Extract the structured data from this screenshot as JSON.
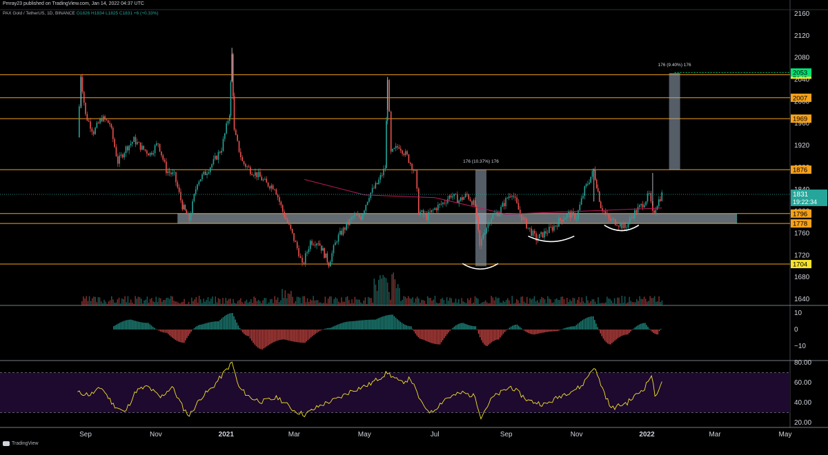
{
  "header": {
    "publish_line": "Pmray23 published on TradingView.com, Jan 14, 2022 04:37 UTC",
    "symbol_line": "PAX Gold / TetherUS, 1D, BINANCE",
    "ohlc": "O1826 H1834 L1825 C1831 +6 (+0.33%)"
  },
  "footer": {
    "brand": "TradingView"
  },
  "colors": {
    "up": "#26a69a",
    "down": "#ef5350",
    "level": "#f7a21b",
    "zone": "#b2c3d3",
    "ma": "#c2185b",
    "rsi": "#f7e32a",
    "rsi_band": "#1d0a2e",
    "price_tag": "#26a69a"
  },
  "chart_data": [
    {
      "type": "candlestick",
      "title": "PAX Gold / TetherUS, 1D, BINANCE",
      "y_axis_ticks": [
        "2160",
        "2120",
        "2080",
        "2040",
        "2000",
        "1960",
        "1920",
        "1880",
        "1840",
        "1800",
        "1760",
        "1720",
        "1680",
        "1640"
      ],
      "ylim": [
        1625,
        2165
      ],
      "x_axis_ticks": [
        "Sep",
        "Nov",
        "2021",
        "Mar",
        "May",
        "Jul",
        "Sep",
        "Nov",
        "2022",
        "Mar",
        "May"
      ],
      "price_series": [
        {
          "date": "2020-08-25",
          "close": 1935
        },
        {
          "date": "2020-08-28",
          "close": 2048
        },
        {
          "date": "2020-09-01",
          "close": 1975
        },
        {
          "date": "2020-09-08",
          "close": 1945
        },
        {
          "date": "2020-09-15",
          "close": 1970
        },
        {
          "date": "2020-09-22",
          "close": 1960
        },
        {
          "date": "2020-09-29",
          "close": 1890
        },
        {
          "date": "2020-10-06",
          "close": 1915
        },
        {
          "date": "2020-10-13",
          "close": 1930
        },
        {
          "date": "2020-10-20",
          "close": 1915
        },
        {
          "date": "2020-10-27",
          "close": 1905
        },
        {
          "date": "2020-11-03",
          "close": 1925
        },
        {
          "date": "2020-11-10",
          "close": 1875
        },
        {
          "date": "2020-11-17",
          "close": 1865
        },
        {
          "date": "2020-11-24",
          "close": 1810
        },
        {
          "date": "2020-11-30",
          "close": 1785
        },
        {
          "date": "2020-12-07",
          "close": 1855
        },
        {
          "date": "2020-12-14",
          "close": 1870
        },
        {
          "date": "2020-12-21",
          "close": 1890
        },
        {
          "date": "2020-12-28",
          "close": 1915
        },
        {
          "date": "2021-01-04",
          "close": 1980
        },
        {
          "date": "2021-01-06",
          "close": 2085
        },
        {
          "date": "2021-01-08",
          "close": 1945
        },
        {
          "date": "2021-01-15",
          "close": 1890
        },
        {
          "date": "2021-01-22",
          "close": 1875
        },
        {
          "date": "2021-01-29",
          "close": 1865
        },
        {
          "date": "2021-02-05",
          "close": 1850
        },
        {
          "date": "2021-02-12",
          "close": 1845
        },
        {
          "date": "2021-02-19",
          "close": 1800
        },
        {
          "date": "2021-02-26",
          "close": 1765
        },
        {
          "date": "2021-03-05",
          "close": 1725
        },
        {
          "date": "2021-03-08",
          "close": 1700
        },
        {
          "date": "2021-03-15",
          "close": 1745
        },
        {
          "date": "2021-03-22",
          "close": 1745
        },
        {
          "date": "2021-03-31",
          "close": 1705
        },
        {
          "date": "2021-04-07",
          "close": 1750
        },
        {
          "date": "2021-04-14",
          "close": 1770
        },
        {
          "date": "2021-04-21",
          "close": 1790
        },
        {
          "date": "2021-04-28",
          "close": 1790
        },
        {
          "date": "2021-05-05",
          "close": 1830
        },
        {
          "date": "2021-05-12",
          "close": 1850
        },
        {
          "date": "2021-05-19",
          "close": 1880
        },
        {
          "date": "2021-05-21",
          "close": 2045
        },
        {
          "date": "2021-05-24",
          "close": 1905
        },
        {
          "date": "2021-05-31",
          "close": 1920
        },
        {
          "date": "2021-06-07",
          "close": 1900
        },
        {
          "date": "2021-06-14",
          "close": 1870
        },
        {
          "date": "2021-06-17",
          "close": 1800
        },
        {
          "date": "2021-06-24",
          "close": 1790
        },
        {
          "date": "2021-07-01",
          "close": 1805
        },
        {
          "date": "2021-07-08",
          "close": 1815
        },
        {
          "date": "2021-07-15",
          "close": 1830
        },
        {
          "date": "2021-07-22",
          "close": 1820
        },
        {
          "date": "2021-07-29",
          "close": 1830
        },
        {
          "date": "2021-08-05",
          "close": 1810
        },
        {
          "date": "2021-08-09",
          "close": 1735
        },
        {
          "date": "2021-08-12",
          "close": 1760
        },
        {
          "date": "2021-08-19",
          "close": 1790
        },
        {
          "date": "2021-08-26",
          "close": 1800
        },
        {
          "date": "2021-09-02",
          "close": 1825
        },
        {
          "date": "2021-09-06",
          "close": 1835
        },
        {
          "date": "2021-09-13",
          "close": 1795
        },
        {
          "date": "2021-09-20",
          "close": 1770
        },
        {
          "date": "2021-09-27",
          "close": 1750
        },
        {
          "date": "2021-10-04",
          "close": 1760
        },
        {
          "date": "2021-10-11",
          "close": 1770
        },
        {
          "date": "2021-10-18",
          "close": 1785
        },
        {
          "date": "2021-10-25",
          "close": 1795
        },
        {
          "date": "2021-11-01",
          "close": 1790
        },
        {
          "date": "2021-11-08",
          "close": 1840
        },
        {
          "date": "2021-11-16",
          "close": 1875
        },
        {
          "date": "2021-11-22",
          "close": 1810
        },
        {
          "date": "2021-11-29",
          "close": 1785
        },
        {
          "date": "2021-12-06",
          "close": 1780
        },
        {
          "date": "2021-12-13",
          "close": 1770
        },
        {
          "date": "2021-12-20",
          "close": 1795
        },
        {
          "date": "2021-12-27",
          "close": 1810
        },
        {
          "date": "2022-01-03",
          "close": 1830
        },
        {
          "date": "2022-01-06",
          "close": 1795
        },
        {
          "date": "2022-01-10",
          "close": 1815
        },
        {
          "date": "2022-01-14",
          "close": 1831
        }
      ],
      "moving_average": [
        {
          "date": "2021-03-10",
          "value": 1858
        },
        {
          "date": "2021-05-01",
          "value": 1830
        },
        {
          "date": "2021-07-01",
          "value": 1825
        },
        {
          "date": "2021-09-01",
          "value": 1795
        },
        {
          "date": "2021-11-01",
          "value": 1800
        },
        {
          "date": "2022-01-14",
          "value": 1806
        }
      ],
      "levels": [
        {
          "label": "2049",
          "value": 2049,
          "tag_color": "#f7e32a"
        },
        {
          "label": "2007",
          "value": 2007,
          "tag_color": "#f7a21b"
        },
        {
          "label": "1969",
          "value": 1969,
          "tag_color": "#f7a21b"
        },
        {
          "label": "1876",
          "value": 1876,
          "tag_color": "#f7a21b"
        },
        {
          "label": "1796",
          "value": 1796,
          "tag_color": "#f7a21b"
        },
        {
          "label": "1778",
          "value": 1778,
          "tag_color": "#f7a21b"
        },
        {
          "label": "1704",
          "value": 1704,
          "tag_color": "#f7e32a"
        }
      ],
      "target_tag": {
        "label": "2053",
        "value": 2053,
        "tag_color": "#00e676"
      },
      "support_zone": {
        "from_date": "2020-11-20",
        "to_date": "2022-03-20",
        "low": 1778,
        "high": 1796
      },
      "measure_boxes": [
        {
          "label": "176 (10.37%) 176",
          "date": "2021-08-10",
          "low": 1700,
          "high": 1876
        },
        {
          "label": "176 (9.40%) 176",
          "date": "2022-01-25",
          "low": 1876,
          "high": 2052
        }
      ],
      "arcs": [
        {
          "from_date": "2021-07-25",
          "to_date": "2021-08-25",
          "value": 1705
        },
        {
          "from_date": "2021-09-20",
          "to_date": "2021-10-30",
          "value": 1755
        },
        {
          "from_date": "2021-11-25",
          "to_date": "2021-12-25",
          "value": 1775
        }
      ],
      "last_price": {
        "label": "1831",
        "countdown": "19:22:34",
        "value": 1831
      }
    },
    {
      "type": "bar",
      "title": "",
      "y_axis_ticks": [
        "10",
        "0",
        "−10"
      ],
      "ylim": [
        -15,
        15
      ],
      "histogram": [
        {
          "date": "2020-09-25",
          "value": 2
        },
        {
          "date": "2020-10-10",
          "value": 6
        },
        {
          "date": "2020-10-25",
          "value": 4
        },
        {
          "date": "2020-11-10",
          "value": -2
        },
        {
          "date": "2020-11-25",
          "value": -8
        },
        {
          "date": "2020-12-10",
          "value": 3
        },
        {
          "date": "2020-12-25",
          "value": 5
        },
        {
          "date": "2021-01-06",
          "value": 10
        },
        {
          "date": "2021-01-20",
          "value": -4
        },
        {
          "date": "2021-02-01",
          "value": -12
        },
        {
          "date": "2021-02-20",
          "value": -6
        },
        {
          "date": "2021-03-10",
          "value": -8
        },
        {
          "date": "2021-04-01",
          "value": 1
        },
        {
          "date": "2021-04-20",
          "value": 5
        },
        {
          "date": "2021-05-10",
          "value": 6
        },
        {
          "date": "2021-05-25",
          "value": 9
        },
        {
          "date": "2021-06-10",
          "value": 2
        },
        {
          "date": "2021-06-20",
          "value": -6
        },
        {
          "date": "2021-07-05",
          "value": -9
        },
        {
          "date": "2021-07-25",
          "value": 4
        },
        {
          "date": "2021-08-05",
          "value": 2
        },
        {
          "date": "2021-08-15",
          "value": -10
        },
        {
          "date": "2021-08-25",
          "value": -6
        },
        {
          "date": "2021-09-10",
          "value": 3
        },
        {
          "date": "2021-09-25",
          "value": -3
        },
        {
          "date": "2021-10-15",
          "value": -1
        },
        {
          "date": "2021-10-30",
          "value": 2
        },
        {
          "date": "2021-11-15",
          "value": 8
        },
        {
          "date": "2021-11-30",
          "value": -9
        },
        {
          "date": "2021-12-15",
          "value": -3
        },
        {
          "date": "2021-12-30",
          "value": 4
        },
        {
          "date": "2022-01-10",
          "value": -3
        },
        {
          "date": "2022-01-14",
          "value": 1
        }
      ]
    },
    {
      "type": "line",
      "title": "",
      "y_axis_ticks": [
        "80.00",
        "60.00",
        "40.00",
        "20.00"
      ],
      "ylim": [
        18,
        84
      ],
      "band": [
        30,
        70
      ],
      "series": [
        {
          "values": [
            {
              "date": "2020-08-25",
              "value": 50
            },
            {
              "date": "2020-09-05",
              "value": 48
            },
            {
              "date": "2020-09-15",
              "value": 55
            },
            {
              "date": "2020-09-25",
              "value": 38
            },
            {
              "date": "2020-10-05",
              "value": 30
            },
            {
              "date": "2020-10-15",
              "value": 52
            },
            {
              "date": "2020-10-25",
              "value": 56
            },
            {
              "date": "2020-11-05",
              "value": 45
            },
            {
              "date": "2020-11-15",
              "value": 56
            },
            {
              "date": "2020-11-25",
              "value": 34
            },
            {
              "date": "2020-11-30",
              "value": 27
            },
            {
              "date": "2020-12-10",
              "value": 45
            },
            {
              "date": "2020-12-20",
              "value": 55
            },
            {
              "date": "2021-01-06",
              "value": 80
            },
            {
              "date": "2021-01-12",
              "value": 55
            },
            {
              "date": "2021-01-22",
              "value": 45
            },
            {
              "date": "2021-02-01",
              "value": 41
            },
            {
              "date": "2021-02-15",
              "value": 45
            },
            {
              "date": "2021-03-01",
              "value": 32
            },
            {
              "date": "2021-03-10",
              "value": 28
            },
            {
              "date": "2021-03-25",
              "value": 38
            },
            {
              "date": "2021-04-08",
              "value": 44
            },
            {
              "date": "2021-04-20",
              "value": 52
            },
            {
              "date": "2021-05-05",
              "value": 58
            },
            {
              "date": "2021-05-21",
              "value": 70
            },
            {
              "date": "2021-06-01",
              "value": 60
            },
            {
              "date": "2021-06-10",
              "value": 64
            },
            {
              "date": "2021-06-20",
              "value": 38
            },
            {
              "date": "2021-06-28",
              "value": 30
            },
            {
              "date": "2021-07-10",
              "value": 44
            },
            {
              "date": "2021-07-25",
              "value": 50
            },
            {
              "date": "2021-08-05",
              "value": 46
            },
            {
              "date": "2021-08-10",
              "value": 26
            },
            {
              "date": "2021-08-20",
              "value": 45
            },
            {
              "date": "2021-09-05",
              "value": 56
            },
            {
              "date": "2021-09-20",
              "value": 42
            },
            {
              "date": "2021-10-05",
              "value": 38
            },
            {
              "date": "2021-10-20",
              "value": 48
            },
            {
              "date": "2021-11-05",
              "value": 56
            },
            {
              "date": "2021-11-16",
              "value": 76
            },
            {
              "date": "2021-11-25",
              "value": 50
            },
            {
              "date": "2021-12-01",
              "value": 34
            },
            {
              "date": "2021-12-15",
              "value": 40
            },
            {
              "date": "2021-12-30",
              "value": 55
            },
            {
              "date": "2022-01-05",
              "value": 68
            },
            {
              "date": "2022-01-08",
              "value": 46
            },
            {
              "date": "2022-01-14",
              "value": 61
            }
          ]
        }
      ]
    }
  ]
}
